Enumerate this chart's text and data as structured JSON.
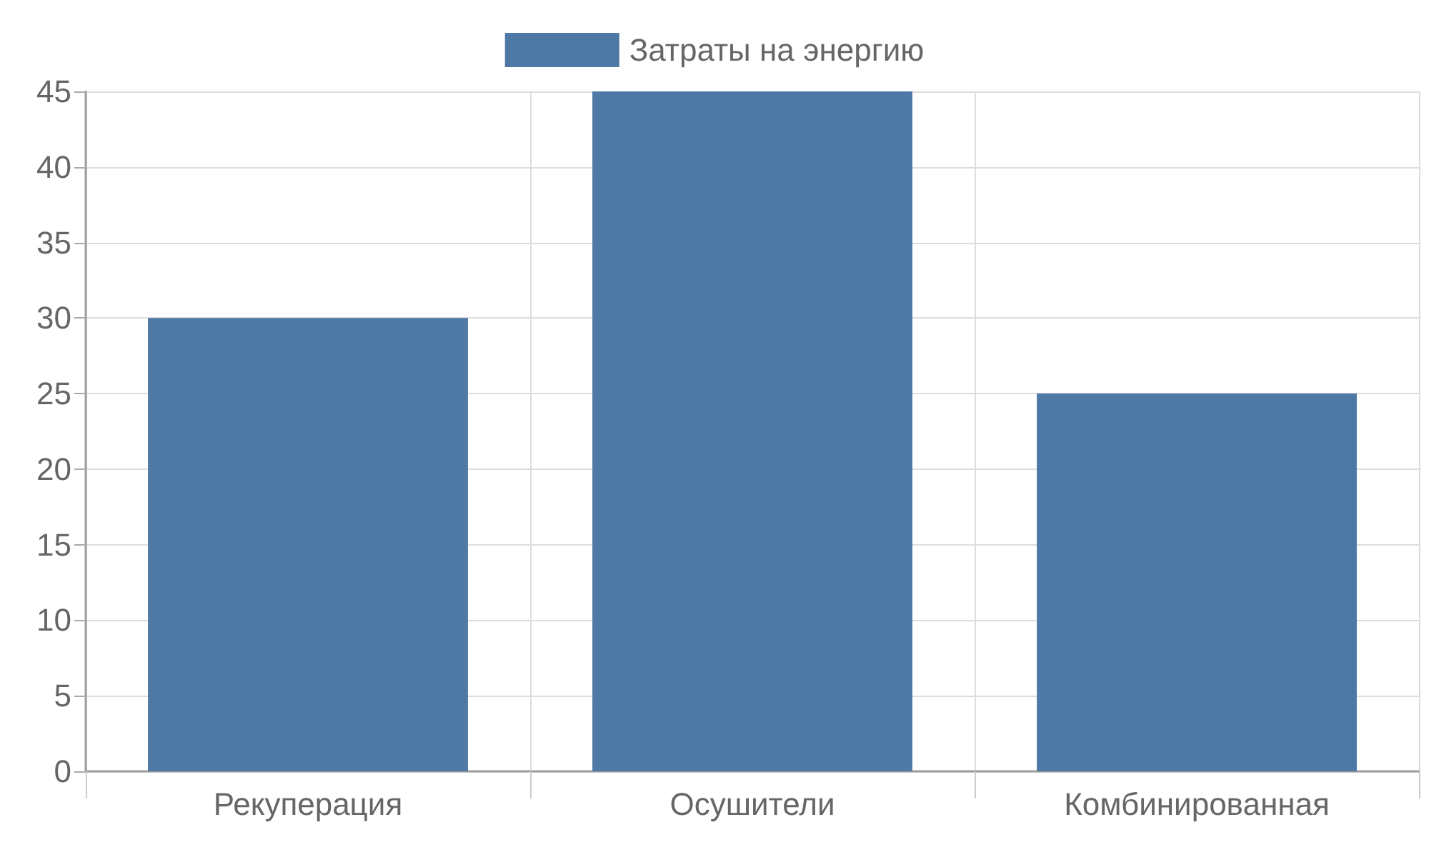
{
  "chart_data": {
    "type": "bar",
    "categories": [
      "Рекуперация",
      "Осушители",
      "Комбинированная"
    ],
    "series": [
      {
        "name": "Затраты на энергию",
        "color": "#4e79a7",
        "values": [
          30,
          45,
          25
        ]
      }
    ],
    "ylim": [
      0,
      45
    ],
    "yticks": [
      0,
      5,
      10,
      15,
      20,
      25,
      30,
      35,
      40,
      45
    ],
    "grid": true,
    "legend": "top"
  }
}
